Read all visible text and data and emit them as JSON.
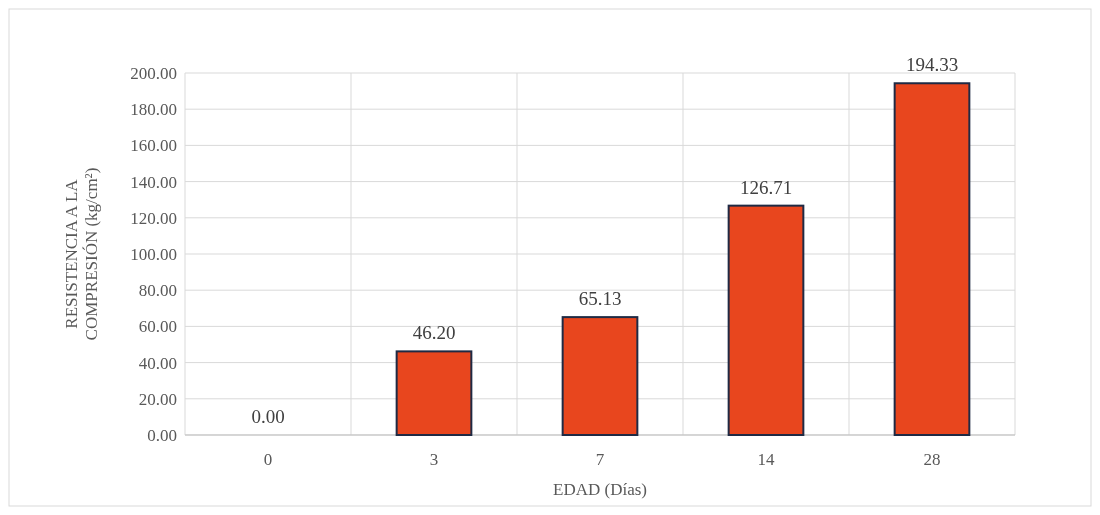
{
  "chart_data": {
    "type": "bar",
    "xlabel": "EDAD (Días)",
    "ylabel": "RESISTENCIA A LA COMPRESIÓN (kg/cm²)",
    "categories": [
      "0",
      "3",
      "7",
      "14",
      "28"
    ],
    "values": [
      0.0,
      46.2,
      65.13,
      126.71,
      194.33
    ],
    "color": "#e8461e",
    "ylim": [
      0,
      200
    ],
    "yticks": [
      {
        "value": 0,
        "label": "0.00"
      },
      {
        "value": 20,
        "label": "20.00"
      },
      {
        "value": 40,
        "label": "40.00"
      },
      {
        "value": 60,
        "label": "60.00"
      },
      {
        "value": 80,
        "label": "80.00"
      },
      {
        "value": 100,
        "label": "100.00"
      },
      {
        "value": 120,
        "label": "120.00"
      },
      {
        "value": 140,
        "label": "140.00"
      },
      {
        "value": 160,
        "label": "160.00"
      },
      {
        "value": 180,
        "label": "180.00"
      },
      {
        "value": 200,
        "label": "200.00"
      }
    ],
    "value_labels": [
      "0.00",
      "46.20",
      "65.13",
      "126.71",
      "194.33"
    ],
    "grid": true
  }
}
